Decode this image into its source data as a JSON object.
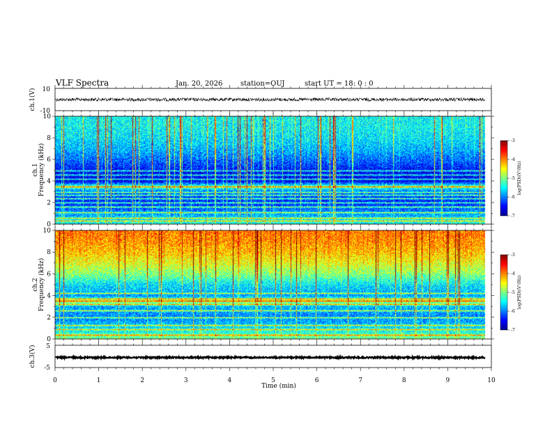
{
  "header": {
    "title": "VLF Spectra",
    "date": "Jan. 20, 2026",
    "station": "station=OUJ",
    "start": "start UT =  18: 0  : 0"
  },
  "chart_data": [
    {
      "type": "line",
      "id": "ch1-waveform",
      "ylabel": "ch.1(V)",
      "ylim": [
        -10,
        10
      ],
      "yticks": [
        -10,
        10
      ],
      "ytick_labels": [
        "-10",
        "10"
      ],
      "xlim": [
        0,
        10
      ],
      "baseline": 0,
      "amplitude": 1.5,
      "data_end_min": 9.85
    },
    {
      "type": "heatmap",
      "id": "ch1-spectrogram",
      "ylabel": "Frequency (kHz)",
      "channel_label": "ch.1",
      "xlim": [
        0,
        10
      ],
      "ylim": [
        0,
        10
      ],
      "yticks": [
        0,
        2,
        4,
        6,
        8,
        10
      ],
      "colorbar": {
        "label": "log(PSD)(V²/Hz)",
        "range": [
          -7,
          -3
        ],
        "ticks": [
          "-3",
          "-4",
          "-5",
          "-6",
          "-7"
        ]
      },
      "data_end_min": 9.85,
      "mean_level_by_kHz": {
        "0": -5.4,
        "1": -5.9,
        "2": -6.4,
        "3": -6.2,
        "3.5": -5.2,
        "4": -6.6,
        "5": -6.5,
        "6": -6.1,
        "7": -5.8,
        "8": -5.6,
        "9": -5.5,
        "10": -5.5
      },
      "line_tones_kHz": [
        0.3,
        0.6,
        1.1,
        1.6,
        2.0,
        2.4,
        2.7,
        3.0,
        3.5,
        4.2,
        4.6,
        5.0
      ]
    },
    {
      "type": "heatmap",
      "id": "ch2-spectrogram",
      "ylabel": "Frequency (kHz)",
      "channel_label": "ch.2",
      "xlim": [
        0,
        10
      ],
      "ylim": [
        0,
        10
      ],
      "yticks": [
        0,
        2,
        4,
        6,
        8,
        10
      ],
      "colorbar": {
        "label": "log(PSD)(V²/Hz)",
        "range": [
          -7,
          -3
        ],
        "ticks": [
          "-3",
          "-4",
          "-5",
          "-6",
          "-7"
        ]
      },
      "data_end_min": 9.85,
      "mean_level_by_kHz": {
        "0": -5.0,
        "1": -5.6,
        "2": -6.0,
        "3": -5.8,
        "3.5": -4.9,
        "4": -5.9,
        "5": -5.6,
        "6": -5.0,
        "7": -4.6,
        "8": -4.3,
        "9": -4.1,
        "10": -4.0
      },
      "line_tones_kHz": [
        0.4,
        0.9,
        1.3,
        2.0,
        2.6,
        3.2,
        3.5,
        3.7,
        4.2
      ]
    },
    {
      "type": "line",
      "id": "ch3-waveform",
      "ylabel": "ch.3(V)",
      "ylim": [
        -5,
        5
      ],
      "yticks": [
        -5,
        5
      ],
      "ytick_labels": [
        "-5",
        "5"
      ],
      "xlim": [
        0,
        10
      ],
      "baseline": -0.5,
      "amplitude": 0.3,
      "data_end_min": 9.85
    }
  ],
  "x_axis": {
    "label": "Time (min)",
    "ticks": [
      "0",
      "1",
      "2",
      "3",
      "4",
      "5",
      "6",
      "7",
      "8",
      "9",
      "10"
    ]
  },
  "colors": {
    "colormap": [
      "#00008f",
      "#0000ff",
      "#0080ff",
      "#00ffff",
      "#80ff80",
      "#ffff00",
      "#ff8000",
      "#ff0000",
      "#800000"
    ]
  }
}
